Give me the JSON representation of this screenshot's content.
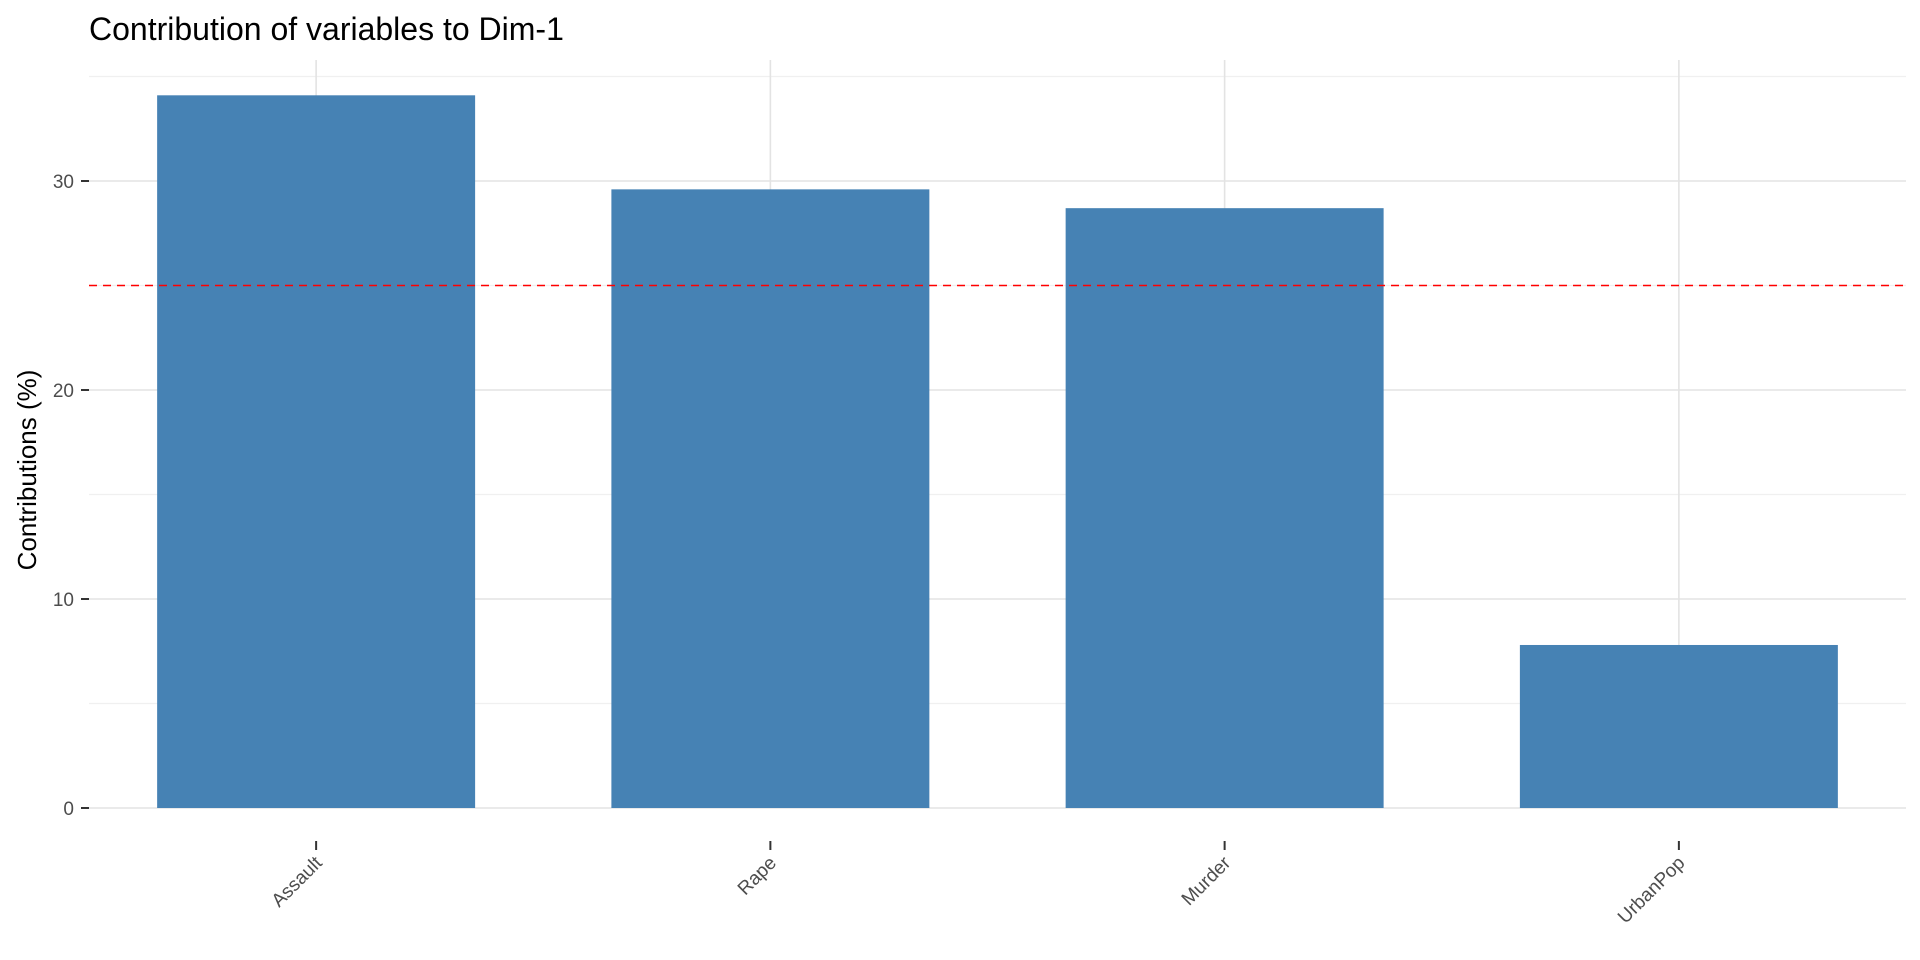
{
  "chart_data": {
    "type": "bar",
    "title": "Contribution of variables to Dim-1",
    "xlabel": "",
    "ylabel": "Contributions (%)",
    "categories": [
      "Assault",
      "Rape",
      "Murder",
      "UrbanPop"
    ],
    "values": [
      34.1,
      29.6,
      28.7,
      7.8
    ],
    "ylim": [
      0,
      36
    ],
    "yticks": [
      0,
      10,
      20,
      30
    ],
    "reference_line": {
      "value": 25,
      "style": "dashed",
      "color": "#ff0000"
    },
    "bar_color": "#4682b4",
    "grid": true
  }
}
